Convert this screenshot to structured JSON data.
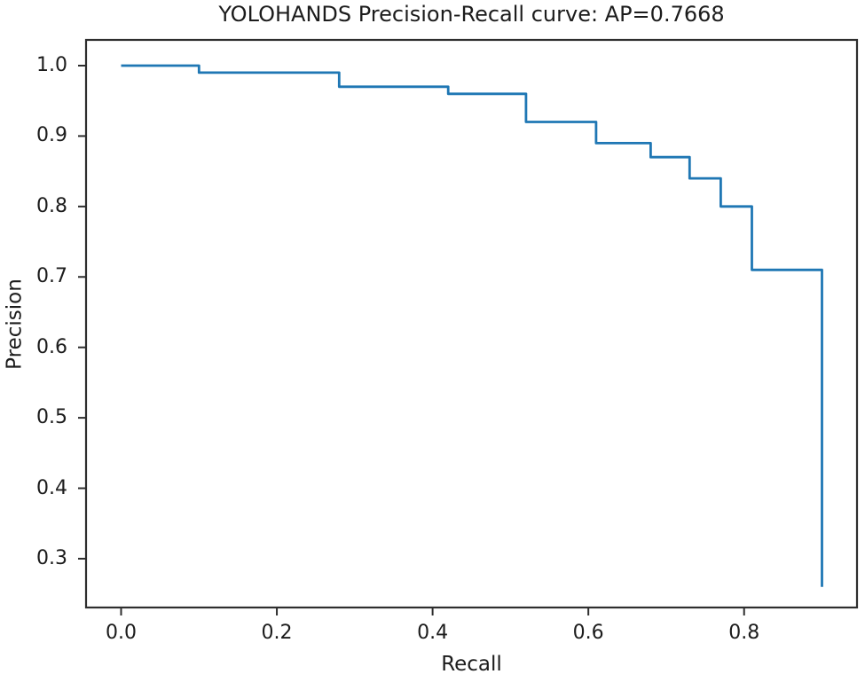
{
  "figure": {
    "background_color": "#ffffff",
    "frame_color": "#2e2e2e",
    "text_color": "#1c1c1c"
  },
  "chart_data": {
    "type": "line",
    "subtype": "step-precision-recall",
    "title": "YOLOHANDS Precision-Recall curve: AP=0.7668",
    "xlabel": "Recall",
    "ylabel": "Precision",
    "ap_value": "0.7668",
    "line_color": "#1f77b4",
    "grid": false,
    "legend": "none",
    "xlim": [
      -0.045,
      0.945
    ],
    "ylim": [
      0.2307,
      1.0365
    ],
    "x_ticks": [
      0.0,
      0.2,
      0.4,
      0.6,
      0.8
    ],
    "x_tick_labels": [
      "0.0",
      "0.2",
      "0.4",
      "0.6",
      "0.8"
    ],
    "y_ticks": [
      1.0,
      0.9,
      0.8,
      0.7,
      0.6,
      0.5,
      0.4,
      0.3
    ],
    "y_tick_labels": [
      "1.0",
      "0.9",
      "0.8",
      "0.7",
      "0.6",
      "0.5",
      "0.4",
      "0.3"
    ],
    "series": [
      {
        "name": "precision-recall-curve",
        "step_mode": "hold-then-drop",
        "x": [
          0.0,
          0.1,
          0.28,
          0.42,
          0.52,
          0.61,
          0.68,
          0.73,
          0.77,
          0.81,
          0.9
        ],
        "y": [
          1.0,
          0.99,
          0.97,
          0.96,
          0.92,
          0.89,
          0.87,
          0.84,
          0.8,
          0.71,
          0.26
        ]
      }
    ]
  }
}
